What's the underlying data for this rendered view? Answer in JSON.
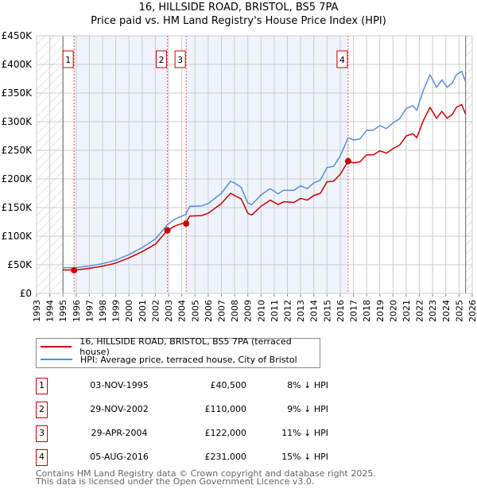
{
  "chart_data": {
    "type": "line",
    "title": "16, HILLSIDE ROAD, BRISTOL, BS5 7PA",
    "subtitle": "Price paid vs. HM Land Registry's House Price Index (HPI)",
    "xlim": [
      1993,
      2026
    ],
    "ylim": [
      0,
      450000
    ],
    "x_ticks": [
      "1993",
      "1994",
      "1995",
      "1996",
      "1997",
      "1998",
      "1999",
      "2000",
      "2001",
      "2002",
      "2003",
      "2004",
      "2005",
      "2006",
      "2007",
      "2008",
      "2009",
      "2010",
      "2011",
      "2012",
      "2013",
      "2014",
      "2015",
      "2016",
      "2017",
      "2018",
      "2019",
      "2020",
      "2021",
      "2022",
      "2023",
      "2024",
      "2025",
      "2026"
    ],
    "y_ticks": [
      {
        "v": 0,
        "label": "£0"
      },
      {
        "v": 50000,
        "label": "£50K"
      },
      {
        "v": 100000,
        "label": "£100K"
      },
      {
        "v": 150000,
        "label": "£150K"
      },
      {
        "v": 200000,
        "label": "£200K"
      },
      {
        "v": 250000,
        "label": "£250K"
      },
      {
        "v": 300000,
        "label": "£300K"
      },
      {
        "v": 350000,
        "label": "£350K"
      },
      {
        "v": 400000,
        "label": "£400K"
      },
      {
        "v": 450000,
        "label": "£450K"
      }
    ],
    "x": [
      1995.0,
      1996,
      1997,
      1998,
      1999,
      2000,
      2001,
      2002,
      2002.9,
      2003.5,
      2004.3,
      2004.6,
      2005.5,
      2006,
      2007,
      2007.7,
      2008,
      2008.5,
      2009,
      2009.3,
      2010,
      2010.7,
      2011.3,
      2011.7,
      2012.5,
      2013,
      2013.5,
      2014,
      2014.5,
      2015,
      2015.5,
      2016,
      2016.6,
      2017,
      2017.5,
      2018,
      2018.5,
      2019,
      2019.5,
      2020,
      2020.5,
      2021,
      2021.5,
      2021.8,
      2022.3,
      2022.8,
      2023.3,
      2023.7,
      2024.1,
      2024.5,
      2024.8,
      2025.2,
      2025.5
    ],
    "series": [
      {
        "name": "16, HILLSIDE ROAD, BRISTOL, BS5 7PA (terraced house)",
        "color": "#cc0000",
        "values": [
          41000,
          41000,
          44000,
          47500,
          53000,
          62000,
          73000,
          86000,
          110000,
          118000,
          124000,
          135000,
          136000,
          140000,
          157000,
          175000,
          171000,
          165000,
          140000,
          137000,
          152000,
          163000,
          155000,
          160000,
          159000,
          166000,
          163000,
          171000,
          175000,
          195000,
          196000,
          208000,
          231000,
          228000,
          230000,
          242000,
          242000,
          249000,
          245000,
          253000,
          259000,
          275000,
          279000,
          272000,
          302000,
          325000,
          306000,
          318000,
          306000,
          313000,
          325000,
          330000,
          313000
        ]
      },
      {
        "name": "HPI: Average price, terraced house, City of Bristol",
        "color": "#5b8fd4",
        "values": [
          45000,
          45000,
          48000,
          52000,
          58000,
          68000,
          80000,
          95000,
          120000,
          130000,
          138000,
          152000,
          153000,
          157000,
          175000,
          196000,
          193000,
          185000,
          158000,
          155000,
          172000,
          183000,
          174000,
          180000,
          180000,
          188000,
          183000,
          193000,
          198000,
          220000,
          222000,
          240000,
          272000,
          268000,
          270000,
          285000,
          285000,
          293000,
          288000,
          298000,
          305000,
          323000,
          328000,
          320000,
          355000,
          382000,
          360000,
          373000,
          360000,
          368000,
          382000,
          388000,
          370000
        ]
      }
    ],
    "sales": [
      {
        "n": "1",
        "x": 1995.84,
        "date": "03-NOV-1995",
        "price": 40500,
        "price_label": "£40,500",
        "hpi": "8% ↓ HPI"
      },
      {
        "n": "2",
        "x": 2002.91,
        "date": "29-NOV-2002",
        "price": 110000,
        "price_label": "£110,000",
        "hpi": "9% ↓ HPI"
      },
      {
        "n": "3",
        "x": 2004.33,
        "date": "29-APR-2004",
        "price": 122000,
        "price_label": "£122,000",
        "hpi": "11% ↓ HPI"
      },
      {
        "n": "4",
        "x": 2016.6,
        "date": "05-AUG-2016",
        "price": 231000,
        "price_label": "£231,000",
        "hpi": "15% ↓ HPI"
      }
    ],
    "legend_placement": "below"
  },
  "footer": [
    "Contains HM Land Registry data © Crown copyright and database right 2025.",
    "This data is licensed under the Open Government Licence v3.0."
  ]
}
